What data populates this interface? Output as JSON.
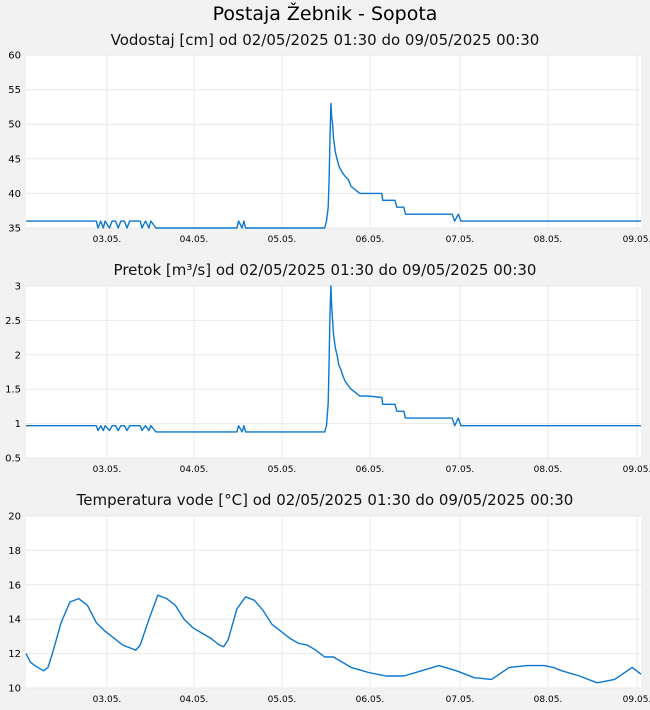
{
  "page": {
    "title": "Postaja Žebnik - Sopota"
  },
  "chart_data": [
    {
      "type": "line",
      "title": "Vodostaj [cm] od 02/05/2025 01:30 do 09/05/2025 00:30",
      "xlabel": "",
      "ylabel": "",
      "x_ticks": [
        "03.05.",
        "04.05.",
        "05.05.",
        "06.05.",
        "07.05.",
        "08.05.",
        "09.05."
      ],
      "y_ticks": [
        "35",
        "40",
        "45",
        "50",
        "55",
        "60"
      ],
      "xlim": [
        1.5,
        8.5
      ],
      "ylim": [
        35,
        60
      ],
      "grid": true,
      "color": "#0a77d0",
      "series": [
        {
          "x": [
            1.5,
            2.3,
            2.32,
            2.35,
            2.38,
            2.4,
            2.45,
            2.48,
            2.52,
            2.55,
            2.58,
            2.62,
            2.65,
            2.68,
            2.8,
            2.82,
            2.86,
            2.9,
            2.92,
            2.98,
            3.0,
            3.9,
            3.92,
            3.96,
            3.98,
            4.0,
            4.02,
            4.05,
            4.9,
            4.92,
            4.94,
            4.95,
            4.96,
            4.97,
            4.98,
            4.99,
            5.0,
            5.02,
            5.04,
            5.06,
            5.08,
            5.1,
            5.13,
            5.17,
            5.2,
            5.25,
            5.3,
            5.4,
            5.55,
            5.56,
            5.7,
            5.72,
            5.8,
            5.82,
            6.35,
            6.38,
            6.42,
            6.45,
            6.5,
            8.5
          ],
          "y": [
            36,
            36,
            35,
            36,
            35,
            36,
            35,
            36,
            36,
            35,
            36,
            36,
            35,
            36,
            36,
            35,
            36,
            35,
            36,
            35,
            35,
            35,
            36,
            35,
            36,
            35,
            35,
            35,
            35,
            36,
            38,
            42,
            48,
            53,
            51,
            50,
            48,
            46,
            45,
            44,
            43.5,
            43,
            42.5,
            42,
            41,
            40.5,
            40,
            40,
            40,
            39,
            39,
            38,
            38,
            37,
            37,
            36,
            37,
            36,
            36,
            36
          ]
        }
      ]
    },
    {
      "type": "line",
      "title": "Pretok [m³/s] od 02/05/2025 01:30 do 09/05/2025 00:30",
      "xlabel": "",
      "ylabel": "",
      "x_ticks": [
        "03.05.",
        "04.05.",
        "05.05.",
        "06.05.",
        "07.05.",
        "08.05.",
        "09.05."
      ],
      "y_ticks": [
        "0.5",
        "1",
        "1.5",
        "2",
        "2.5",
        "3"
      ],
      "xlim": [
        1.5,
        8.5
      ],
      "ylim": [
        0.5,
        3
      ],
      "grid": true,
      "color": "#0a77d0",
      "series": [
        {
          "x": [
            1.5,
            2.3,
            2.32,
            2.35,
            2.38,
            2.4,
            2.45,
            2.48,
            2.52,
            2.55,
            2.58,
            2.62,
            2.65,
            2.68,
            2.8,
            2.82,
            2.86,
            2.9,
            2.92,
            2.98,
            3.0,
            3.9,
            3.92,
            3.96,
            3.98,
            4.0,
            4.02,
            4.05,
            4.9,
            4.92,
            4.94,
            4.95,
            4.96,
            4.97,
            4.98,
            4.99,
            5.0,
            5.02,
            5.04,
            5.06,
            5.08,
            5.1,
            5.13,
            5.17,
            5.2,
            5.25,
            5.3,
            5.4,
            5.55,
            5.56,
            5.7,
            5.72,
            5.8,
            5.82,
            6.35,
            6.38,
            6.42,
            6.45,
            6.5,
            8.5
          ],
          "y": [
            0.97,
            0.97,
            0.9,
            0.97,
            0.9,
            0.97,
            0.9,
            0.97,
            0.97,
            0.9,
            0.97,
            0.97,
            0.9,
            0.97,
            0.97,
            0.9,
            0.97,
            0.9,
            0.97,
            0.88,
            0.88,
            0.88,
            0.97,
            0.88,
            0.97,
            0.88,
            0.88,
            0.88,
            0.88,
            0.97,
            1.3,
            1.9,
            2.6,
            3.0,
            2.7,
            2.5,
            2.3,
            2.1,
            2.0,
            1.85,
            1.8,
            1.72,
            1.62,
            1.55,
            1.5,
            1.45,
            1.4,
            1.4,
            1.38,
            1.28,
            1.28,
            1.18,
            1.18,
            1.08,
            1.08,
            0.97,
            1.08,
            0.97,
            0.97,
            0.97
          ]
        }
      ]
    },
    {
      "type": "line",
      "title": "Temperatura vode [°C] od 02/05/2025 01:30 do 09/05/2025 00:30",
      "xlabel": "",
      "ylabel": "",
      "x_ticks": [
        "03.05.",
        "04.05.",
        "05.05.",
        "06.05.",
        "07.05.",
        "08.05.",
        "09.05."
      ],
      "y_ticks": [
        "10",
        "12",
        "14",
        "16",
        "18",
        "20"
      ],
      "xlim": [
        1.5,
        8.5
      ],
      "ylim": [
        10,
        20
      ],
      "grid": true,
      "color": "#0a77d0",
      "series": [
        {
          "x": [
            1.5,
            1.55,
            1.6,
            1.7,
            1.75,
            1.8,
            1.9,
            2.0,
            2.1,
            2.2,
            2.3,
            2.4,
            2.5,
            2.6,
            2.7,
            2.75,
            2.8,
            2.9,
            3.0,
            3.1,
            3.2,
            3.3,
            3.4,
            3.5,
            3.6,
            3.7,
            3.75,
            3.8,
            3.9,
            4.0,
            4.1,
            4.2,
            4.3,
            4.4,
            4.5,
            4.6,
            4.7,
            4.8,
            4.9,
            5.0,
            5.2,
            5.4,
            5.6,
            5.8,
            6.0,
            6.2,
            6.4,
            6.5,
            6.6,
            6.8,
            7.0,
            7.2,
            7.4,
            7.5,
            7.6,
            7.8,
            8.0,
            8.2,
            8.4,
            8.5
          ],
          "y": [
            12.0,
            11.5,
            11.3,
            11.0,
            11.2,
            12.0,
            13.8,
            15.0,
            15.2,
            14.8,
            13.8,
            13.3,
            12.9,
            12.5,
            12.3,
            12.2,
            12.5,
            14.0,
            15.4,
            15.2,
            14.8,
            14.0,
            13.5,
            13.2,
            12.9,
            12.5,
            12.4,
            12.8,
            14.6,
            15.3,
            15.1,
            14.5,
            13.7,
            13.3,
            12.9,
            12.6,
            12.5,
            12.2,
            11.8,
            11.8,
            11.2,
            10.9,
            10.7,
            10.7,
            11.0,
            11.3,
            11.0,
            10.8,
            10.6,
            10.5,
            11.2,
            11.3,
            11.3,
            11.2,
            11.0,
            10.7,
            10.3,
            10.5,
            11.2,
            10.8
          ]
        }
      ]
    }
  ]
}
